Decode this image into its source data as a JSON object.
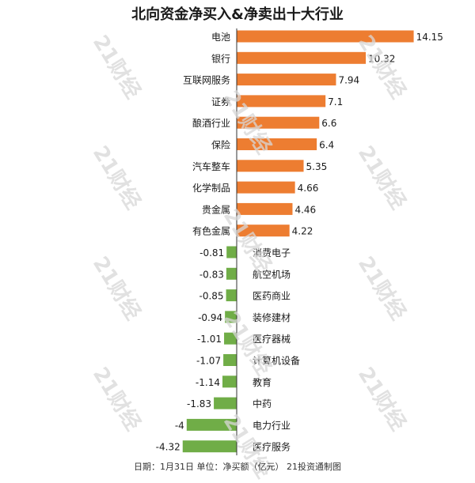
{
  "title": "北向资金净买入&净卖出十大行业",
  "footer": "日期：1月31日 单位：净买额（亿元） 21投资通制图",
  "watermark": "21财经",
  "colors": {
    "positive": "#ED7D31",
    "negative": "#70AD47",
    "axis": "#333333",
    "text": "#1a1a1a"
  },
  "chart_data": {
    "type": "bar",
    "orientation": "horizontal",
    "title": "北向资金净买入&净卖出十大行业",
    "xlabel": "",
    "ylabel": "",
    "grid": false,
    "categories": [
      "电池",
      "银行",
      "互联网服务",
      "证券",
      "酿酒行业",
      "保险",
      "汽车整车",
      "化学制品",
      "贵金属",
      "有色金属",
      "消费电子",
      "航空机场",
      "医药商业",
      "装修建材",
      "医疗器械",
      "计算机设备",
      "教育",
      "中药",
      "电力行业",
      "医疗服务"
    ],
    "values": [
      14.15,
      10.32,
      7.94,
      7.1,
      6.6,
      6.4,
      5.35,
      4.66,
      4.46,
      4.22,
      -0.81,
      -0.83,
      -0.85,
      -0.94,
      -1.01,
      -1.07,
      -1.14,
      -1.83,
      -4,
      -4.32
    ],
    "value_labels": [
      "14.15",
      "10.32",
      "7.94",
      "7.1",
      "6.6",
      "6.4",
      "5.35",
      "4.66",
      "4.46",
      "4.22",
      "-0.81",
      "-0.83",
      "-0.85",
      "-0.94",
      "-1.01",
      "-1.07",
      "-1.14",
      "-1.83",
      "-4",
      "-4.32"
    ]
  }
}
